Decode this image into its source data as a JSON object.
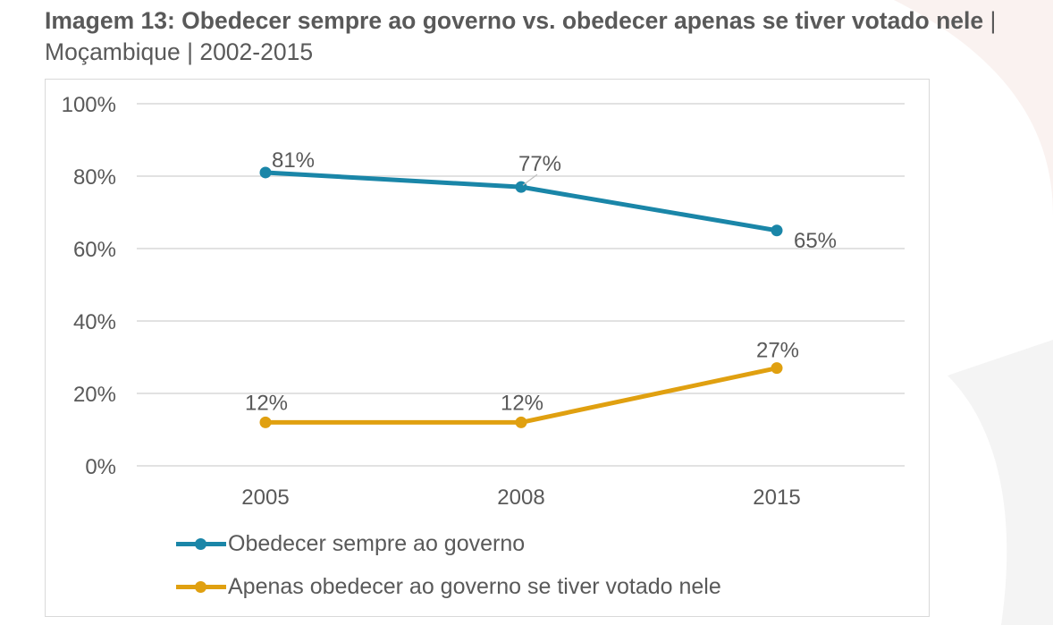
{
  "title": {
    "bold": "Imagem 13: Obedecer sempre ao governo vs. obedecer apenas se  tiver votado nele",
    "separator1": " | ",
    "region": "Moçambique",
    "separator2": " | ",
    "years": "2002-2015"
  },
  "colors": {
    "series_1": "#1a86a8",
    "series_2": "#e0a010",
    "grid": "#d9d9d9",
    "text": "#595959"
  },
  "chart_data": {
    "type": "line",
    "x": [
      "2005",
      "2008",
      "2015"
    ],
    "ylim": [
      0,
      100
    ],
    "y_ticks": [
      "0%",
      "20%",
      "40%",
      "60%",
      "80%",
      "100%"
    ],
    "grid": true,
    "legend_position": "bottom",
    "series": [
      {
        "name": "Obedecer sempre ao governo",
        "values": [
          81,
          77,
          65
        ],
        "labels": [
          "81%",
          "77%",
          "65%"
        ]
      },
      {
        "name": "Apenas obedecer ao governo se tiver votado nele",
        "values": [
          12,
          12,
          27
        ],
        "labels": [
          "12%",
          "12%",
          "27%"
        ]
      }
    ]
  }
}
